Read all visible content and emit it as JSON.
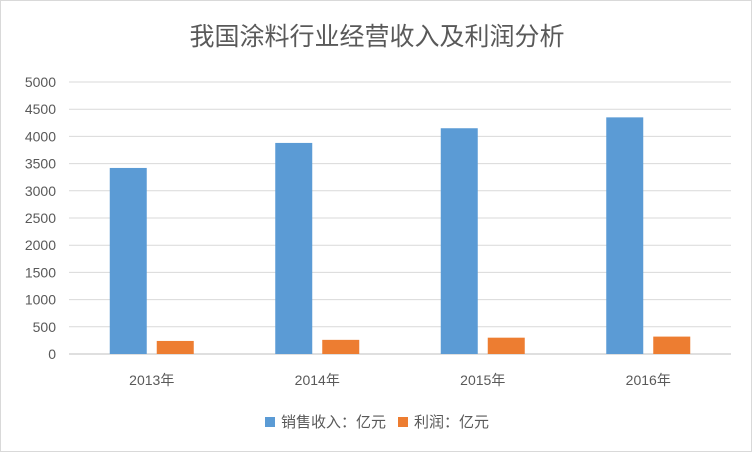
{
  "chart_data": {
    "type": "bar",
    "title": "我国涂料行业经营收入及利润分析",
    "categories": [
      "2013年",
      "2014年",
      "2015年",
      "2016年"
    ],
    "series": [
      {
        "name": "销售收入：亿元",
        "values": [
          3420,
          3880,
          4150,
          4350
        ],
        "color": "#5b9bd5"
      },
      {
        "name": "利润：亿元",
        "values": [
          240,
          260,
          300,
          320
        ],
        "color": "#ed7d31"
      }
    ],
    "ylim": [
      0,
      5000
    ],
    "yticks": [
      "0",
      "500",
      "1000",
      "1500",
      "2000",
      "2500",
      "3000",
      "3500",
      "4000",
      "4500",
      "5000"
    ],
    "grid": true,
    "legend_position": "bottom"
  }
}
